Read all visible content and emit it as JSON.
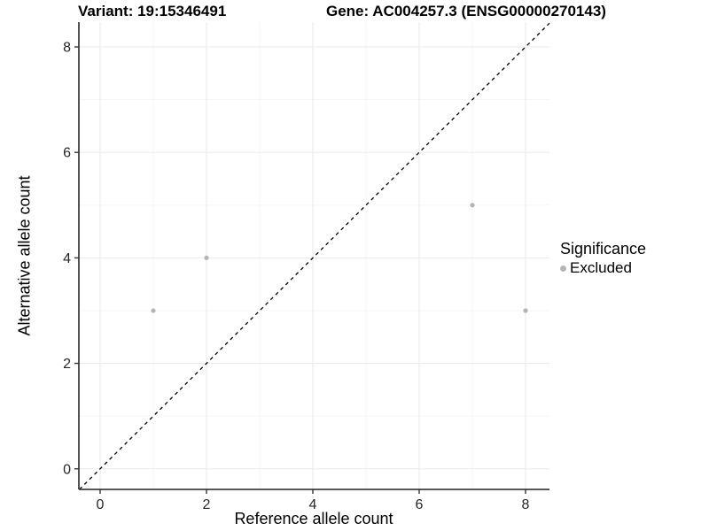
{
  "header": {
    "variant_title": "Variant: 19:15346491",
    "gene_title": "Gene: AC004257.3 (ENSG00000270143)"
  },
  "chart_data": {
    "type": "scatter",
    "xlabel": "Reference allele count",
    "ylabel": "Alternative allele count",
    "xlim": [
      -0.4,
      8.45
    ],
    "ylim": [
      -0.39,
      8.47
    ],
    "x_ticks": [
      0,
      2,
      4,
      6,
      8
    ],
    "y_ticks": [
      0,
      2,
      4,
      6,
      8
    ],
    "x_minor_ticks": [
      1,
      3,
      5,
      7
    ],
    "y_minor_ticks": [
      1,
      3,
      5,
      7
    ],
    "grid": true,
    "legend_position": "right",
    "identity_line": {
      "type": "y=x",
      "style": "dashed",
      "color": "#000000"
    },
    "series": [
      {
        "name": "Excluded",
        "color": "#b5b5b5",
        "points": [
          [
            1,
            3
          ],
          [
            2,
            4
          ],
          [
            7,
            5
          ],
          [
            8,
            3
          ]
        ]
      }
    ],
    "legend": {
      "title": "Significance",
      "items": [
        {
          "label": "Excluded",
          "color": "#b5b5b5"
        }
      ]
    },
    "colors": {
      "background": "#ffffff",
      "grid_major": "#ebebeb",
      "grid_minor": "#f5f5f5",
      "axis_line": "#404040",
      "tick_mark": "#333333",
      "tick_label": "#262626",
      "point": "#b5b5b5",
      "diagonal": "#000000"
    }
  }
}
